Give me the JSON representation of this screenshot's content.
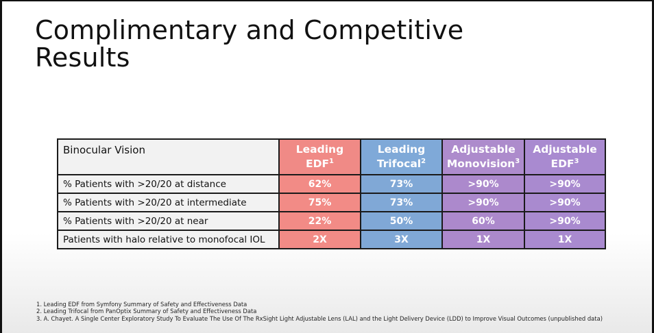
{
  "slide": {
    "title_line1": "Complimentary and Competitive",
    "title_line2": "Results"
  },
  "table": {
    "corner_label": "Binocular Vision",
    "columns": [
      {
        "line1": "Leading",
        "line2": "EDF",
        "sup": "1",
        "color": "#f28b86"
      },
      {
        "line1": "Leading",
        "line2": "Trifocal",
        "sup": "2",
        "color": "#80a8d6"
      },
      {
        "line1": "Adjustable",
        "line2": "Monovision",
        "sup": "3",
        "color": "#ac89cc"
      },
      {
        "line1": "Adjustable",
        "line2": "EDF",
        "sup": "3",
        "color": "#a98acf"
      }
    ],
    "rows": [
      {
        "label": "% Patients with >20/20 at distance",
        "values": [
          "62%",
          "73%",
          ">90%",
          ">90%"
        ]
      },
      {
        "label": "% Patients with >20/20 at intermediate",
        "values": [
          "75%",
          "73%",
          ">90%",
          ">90%"
        ]
      },
      {
        "label": "% Patients with >20/20 at near",
        "values": [
          "22%",
          "50%",
          "60%",
          ">90%"
        ]
      },
      {
        "label": "Patients with halo relative to monofocal IOL",
        "values": [
          "2X",
          "3X",
          "1X",
          "1X"
        ]
      }
    ]
  },
  "footnotes": [
    "1. Leading EDF from Symfony Summary of Safety and Effectiveness Data",
    "2. Leading Trifocal from PanOptix Summary of Safety and Effectiveness Data",
    "3. A. Chayet. A Single Center Exploratory Study To Evaluate The Use Of The RxSight Light Adjustable Lens (LAL) and the Light Delivery Device (LDD) to Improve Visual Outcomes (unpublished data)"
  ]
}
